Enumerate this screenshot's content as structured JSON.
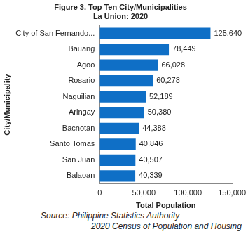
{
  "chart_data": {
    "type": "bar",
    "orientation": "horizontal",
    "title": "Figure 3. Top Ten City/Municipalities",
    "subtitle": "La Union: 2020",
    "x_label": "Total Population",
    "y_label": "City/Municipality",
    "categories": [
      "City of San Fernando...",
      "Bauang",
      "Agoo",
      "Rosario",
      "Naguilian",
      "Aringay",
      "Bacnotan",
      "Santo Tomas",
      "San Juan",
      "Balaoan"
    ],
    "values": [
      125640,
      78449,
      66028,
      60278,
      52189,
      50380,
      44388,
      40846,
      40507,
      40339
    ],
    "value_labels": [
      "125,640",
      "78,449",
      "66,028",
      "60,278",
      "52,189",
      "50,380",
      "44,388",
      "40,846",
      "40,507",
      "40,339"
    ],
    "data_labels": true,
    "color": "#0f6fc6",
    "xlim": [
      0,
      150000
    ],
    "xticks": [
      0,
      {
        "value": 50000,
        "label": "50,000"
      },
      {
        "value": 100000,
        "label": "100,000"
      },
      {
        "value": 150000,
        "label": "150,000"
      }
    ],
    "grid": false,
    "annotations": [
      "Source: Philippine Statistics Authority",
      "2020 Census of Population and Housing"
    ]
  }
}
